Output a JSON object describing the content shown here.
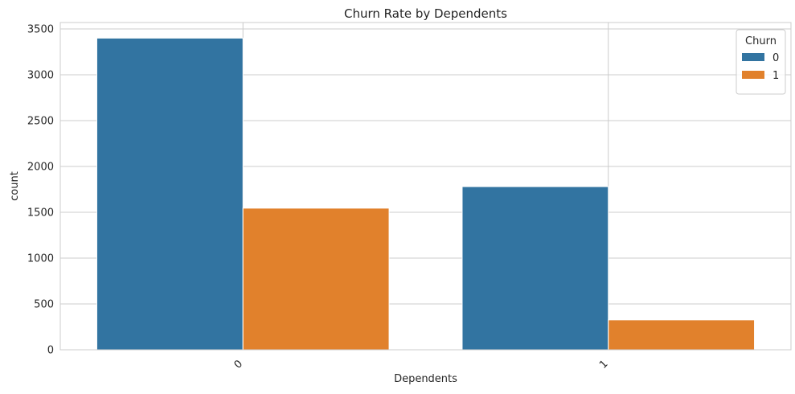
{
  "chart_data": {
    "type": "bar",
    "title": "Churn Rate by Dependents",
    "xlabel": "Dependents",
    "ylabel": "count",
    "categories": [
      "0",
      "1"
    ],
    "series": [
      {
        "name": "0",
        "color": "#3274a1",
        "values": [
          3400,
          1780
        ]
      },
      {
        "name": "1",
        "color": "#e1812c",
        "values": [
          1545,
          326
        ]
      }
    ],
    "ylim": [
      0,
      3570
    ],
    "yticks": [
      0,
      500,
      1000,
      1500,
      2000,
      2500,
      3000,
      3500
    ],
    "grid": true,
    "legend": {
      "title": "Churn",
      "position": "top-right"
    },
    "xtick_rotation": 45
  }
}
